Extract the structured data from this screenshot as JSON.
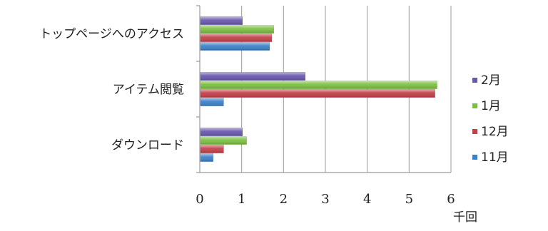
{
  "chart_data": {
    "type": "bar",
    "orientation": "horizontal",
    "categories": [
      "トップページへのアクセス",
      "アイテム閲覧",
      "ダウンロード"
    ],
    "series": [
      {
        "name": "2月",
        "color": "#6a58b0",
        "values": [
          1.0,
          2.5,
          1.0
        ]
      },
      {
        "name": "1月",
        "color": "#7cc043",
        "values": [
          1.75,
          5.65,
          1.1
        ]
      },
      {
        "name": "12月",
        "color": "#c4404a",
        "values": [
          1.7,
          5.6,
          0.55
        ]
      },
      {
        "name": "11月",
        "color": "#3c82c8",
        "values": [
          1.65,
          0.55,
          0.3
        ]
      }
    ],
    "xlim": [
      0,
      6
    ],
    "x_ticks": [
      "0",
      "1",
      "2",
      "3",
      "4",
      "5",
      "6"
    ],
    "unit_label": "千回",
    "grid": true,
    "legend_position": "right"
  }
}
